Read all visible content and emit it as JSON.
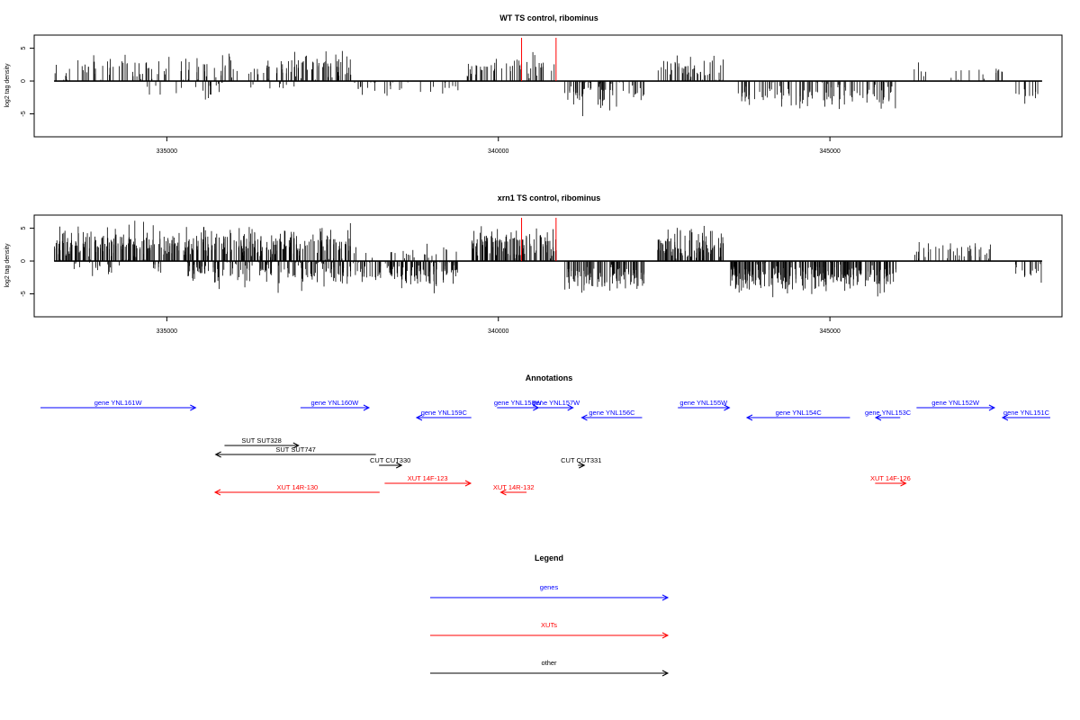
{
  "chart_data": [
    {
      "type": "bar",
      "title": "WT TS control, ribominus",
      "xlabel": "",
      "ylabel": "log2 tag density",
      "xlim": [
        333000,
        348500
      ],
      "ylim": [
        -8.5,
        7
      ],
      "xticks": [
        335000,
        340000,
        345000
      ],
      "xtick_labels": [
        "335000",
        "340000",
        "345000"
      ],
      "yticks": [
        -5,
        0,
        5
      ],
      "ytick_labels": [
        "-5",
        "0",
        "5"
      ],
      "markers_x": [
        340350,
        340870
      ],
      "marker_color": "#ff0000",
      "segments": [
        {
          "from": 333300,
          "to": 335000,
          "sign": 1,
          "n": 55,
          "mean": 1.8,
          "spread": 1.6
        },
        {
          "from": 334700,
          "to": 335400,
          "sign": -1,
          "n": 6,
          "mean": 1.2,
          "spread": 1.0
        },
        {
          "from": 335000,
          "to": 336000,
          "sign": 1,
          "n": 30,
          "mean": 1.6,
          "spread": 1.6
        },
        {
          "from": 335300,
          "to": 335900,
          "sign": -1,
          "n": 12,
          "mean": 1.4,
          "spread": 1.0
        },
        {
          "from": 336000,
          "to": 336500,
          "sign": 1,
          "n": 8,
          "mean": 1.4,
          "spread": 0.8
        },
        {
          "from": 336500,
          "to": 337800,
          "sign": 1,
          "n": 70,
          "mean": 2.2,
          "spread": 1.6
        },
        {
          "from": 336200,
          "to": 337000,
          "sign": -1,
          "n": 8,
          "mean": 0.8,
          "spread": 0.6
        },
        {
          "from": 337800,
          "to": 339400,
          "sign": -1,
          "n": 30,
          "mean": 1.0,
          "spread": 1.0
        },
        {
          "from": 339500,
          "to": 340900,
          "sign": 1,
          "n": 50,
          "mean": 1.8,
          "spread": 1.4
        },
        {
          "from": 341000,
          "to": 342200,
          "sign": -1,
          "n": 60,
          "mean": 1.8,
          "spread": 1.4
        },
        {
          "from": 342400,
          "to": 343400,
          "sign": 1,
          "n": 50,
          "mean": 1.8,
          "spread": 1.6
        },
        {
          "from": 343600,
          "to": 346000,
          "sign": -1,
          "n": 110,
          "mean": 2.0,
          "spread": 1.4
        },
        {
          "from": 346200,
          "to": 346500,
          "sign": 1,
          "n": 5,
          "mean": 1.8,
          "spread": 0.8
        },
        {
          "from": 346800,
          "to": 347400,
          "sign": 1,
          "n": 8,
          "mean": 1.0,
          "spread": 0.8
        },
        {
          "from": 347500,
          "to": 347600,
          "sign": 1,
          "n": 6,
          "mean": 1.6,
          "spread": 0.6
        },
        {
          "from": 347800,
          "to": 348200,
          "sign": -1,
          "n": 10,
          "mean": 1.8,
          "spread": 1.0
        }
      ]
    },
    {
      "type": "bar",
      "title": "xrn1 TS control, ribominus",
      "xlabel": "",
      "ylabel": "log2 tag density",
      "xlim": [
        333000,
        348500
      ],
      "ylim": [
        -8.5,
        7
      ],
      "xticks": [
        335000,
        340000,
        345000
      ],
      "xtick_labels": [
        "335000",
        "340000",
        "345000"
      ],
      "yticks": [
        -5,
        0,
        5
      ],
      "ytick_labels": [
        "-5",
        "0",
        "5"
      ],
      "markers_x": [
        340350,
        340870
      ],
      "marker_color": "#ff0000",
      "segments": [
        {
          "from": 333300,
          "to": 337800,
          "sign": 1,
          "n": 380,
          "mean": 2.4,
          "spread": 1.8
        },
        {
          "from": 333500,
          "to": 335000,
          "sign": -1,
          "n": 25,
          "mean": 1.0,
          "spread": 0.8
        },
        {
          "from": 335300,
          "to": 337800,
          "sign": -1,
          "n": 150,
          "mean": 1.6,
          "spread": 1.4
        },
        {
          "from": 337800,
          "to": 339400,
          "sign": -1,
          "n": 120,
          "mean": 1.6,
          "spread": 1.4
        },
        {
          "from": 337800,
          "to": 339400,
          "sign": 1,
          "n": 25,
          "mean": 1.2,
          "spread": 0.8
        },
        {
          "from": 339600,
          "to": 340900,
          "sign": 1,
          "n": 110,
          "mean": 2.6,
          "spread": 1.6
        },
        {
          "from": 341000,
          "to": 342200,
          "sign": -1,
          "n": 110,
          "mean": 2.4,
          "spread": 1.4
        },
        {
          "from": 342400,
          "to": 343400,
          "sign": 1,
          "n": 90,
          "mean": 2.4,
          "spread": 1.6
        },
        {
          "from": 343500,
          "to": 346000,
          "sign": -1,
          "n": 260,
          "mean": 2.4,
          "spread": 1.6
        },
        {
          "from": 346200,
          "to": 347500,
          "sign": 1,
          "n": 40,
          "mean": 1.6,
          "spread": 1.0
        },
        {
          "from": 347700,
          "to": 348200,
          "sign": -1,
          "n": 14,
          "mean": 1.6,
          "spread": 1.0
        }
      ]
    }
  ],
  "annotations": {
    "title": "Annotations",
    "items": [
      {
        "label": "gene YNL161W",
        "type": "gene",
        "start": 332470,
        "end": 334940,
        "strand": "+",
        "row": 0
      },
      {
        "label": "gene YNL160W",
        "type": "gene",
        "start": 336610,
        "end": 337700,
        "strand": "+",
        "row": 0
      },
      {
        "label": "gene YNL159C",
        "type": "gene",
        "start": 338460,
        "end": 339330,
        "strand": "-",
        "row": 1
      },
      {
        "label": "gene YNL158W",
        "type": "gene",
        "start": 339740,
        "end": 340400,
        "strand": "+",
        "row": 0
      },
      {
        "label": "gene YNL157W",
        "type": "gene",
        "start": 340410,
        "end": 340950,
        "strand": "+",
        "row": 0
      },
      {
        "label": "gene YNL156C",
        "type": "gene",
        "start": 341090,
        "end": 342050,
        "strand": "-",
        "row": 1
      },
      {
        "label": "gene YNL155W",
        "type": "gene",
        "start": 342620,
        "end": 343440,
        "strand": "+",
        "row": 0
      },
      {
        "label": "gene YNL154C",
        "type": "gene",
        "start": 343720,
        "end": 345360,
        "strand": "-",
        "row": 1
      },
      {
        "label": "gene YNL153C",
        "type": "gene",
        "start": 345770,
        "end": 346160,
        "strand": "-",
        "row": 1
      },
      {
        "label": "gene YNL152W",
        "type": "gene",
        "start": 346420,
        "end": 347660,
        "strand": "+",
        "row": 0
      },
      {
        "label": "gene YNL151C",
        "type": "gene",
        "start": 347790,
        "end": 348550,
        "strand": "-",
        "row": 1
      },
      {
        "label": "SUT SUT328",
        "type": "other",
        "start": 335400,
        "end": 336580,
        "strand": "+",
        "row": 3
      },
      {
        "label": "SUT SUT747",
        "type": "other",
        "start": 335260,
        "end": 337810,
        "strand": "-",
        "row": 4
      },
      {
        "label": "CUT CUT330",
        "type": "other",
        "start": 337860,
        "end": 338220,
        "strand": "+",
        "row": 5
      },
      {
        "label": "CUT CUT331",
        "type": "other",
        "start": 341030,
        "end": 341130,
        "strand": "+",
        "row": 5
      },
      {
        "label": "XUT 14F-123",
        "type": "xut",
        "start": 337950,
        "end": 339320,
        "strand": "+",
        "row": 6
      },
      {
        "label": "XUT 14R-130",
        "type": "xut",
        "start": 335250,
        "end": 337870,
        "strand": "-",
        "row": 7
      },
      {
        "label": "XUT 14R-132",
        "type": "xut",
        "start": 339800,
        "end": 340210,
        "strand": "-",
        "row": 7
      },
      {
        "label": "XUT 14F-126",
        "type": "xut",
        "start": 345760,
        "end": 346250,
        "strand": "+",
        "row": 6
      }
    ]
  },
  "legend": {
    "title": "Legend",
    "entries": [
      {
        "label": "genes",
        "color": "#0000ff"
      },
      {
        "label": "XUTs",
        "color": "#ff0000"
      },
      {
        "label": "other",
        "color": "#000000"
      }
    ]
  },
  "colors": {
    "gene": "#0000ff",
    "xut": "#ff0000",
    "other": "#000000"
  }
}
